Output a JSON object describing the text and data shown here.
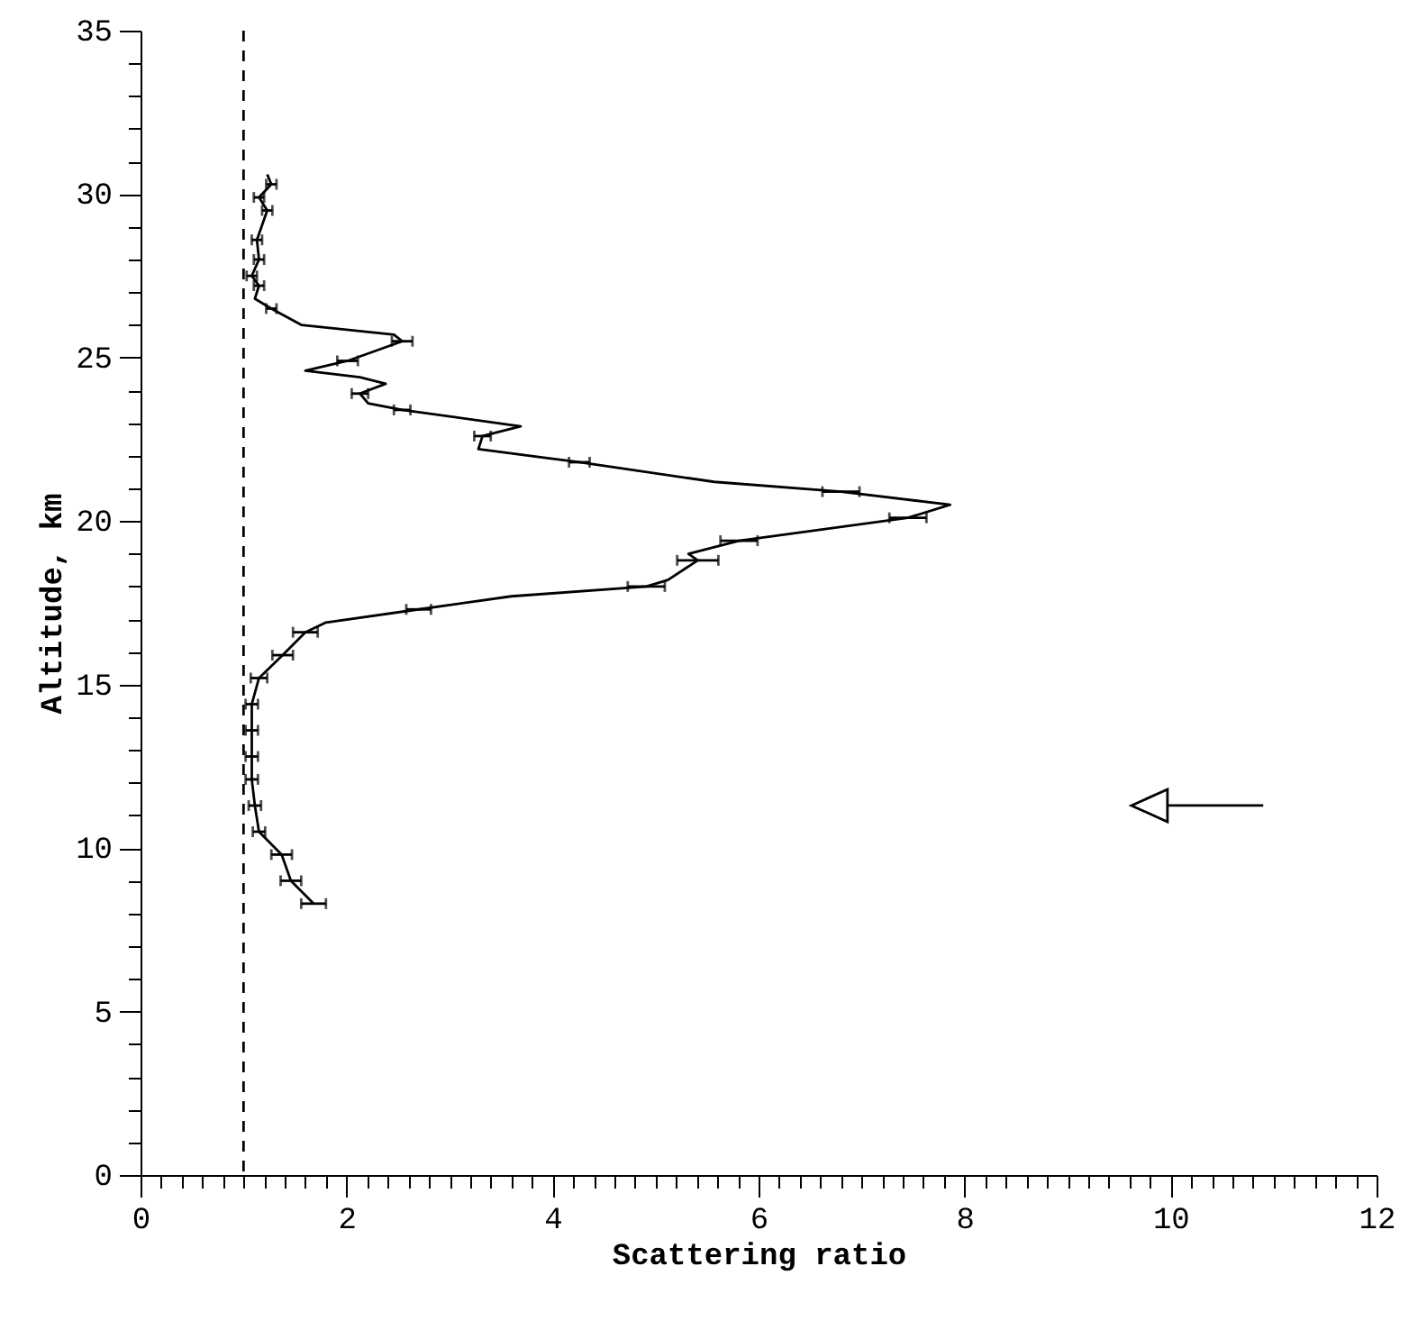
{
  "chart_data": {
    "type": "line",
    "xlabel": "Scattering ratio",
    "ylabel": "Altitude, km",
    "xlim": [
      0,
      12
    ],
    "ylim": [
      0,
      35
    ],
    "xticks": [
      0,
      {
        "value": 0.2,
        "label": null
      },
      {
        "value": 0.4,
        "label": null
      },
      {
        "value": 0.6,
        "label": null
      },
      {
        "value": 0.8,
        "label": null
      },
      {
        "value": 1,
        "label": null
      },
      {
        "value": 1.2,
        "label": null
      },
      {
        "value": 1.4,
        "label": null
      },
      {
        "value": 1.6,
        "label": null
      },
      {
        "value": 1.8,
        "label": null
      },
      2,
      {
        "value": 2.2,
        "label": null
      },
      {
        "value": 2.4,
        "label": null
      },
      {
        "value": 2.6,
        "label": null
      },
      {
        "value": 2.8,
        "label": null
      },
      {
        "value": 3,
        "label": null
      },
      {
        "value": 3.2,
        "label": null
      },
      {
        "value": 3.4,
        "label": null
      },
      {
        "value": 3.6,
        "label": null
      },
      {
        "value": 3.8,
        "label": null
      },
      4,
      {
        "value": 4.2,
        "label": null
      },
      {
        "value": 4.4,
        "label": null
      },
      {
        "value": 4.6,
        "label": null
      },
      {
        "value": 4.8,
        "label": null
      },
      {
        "value": 5,
        "label": null
      },
      {
        "value": 5.2,
        "label": null
      },
      {
        "value": 5.4,
        "label": null
      },
      {
        "value": 5.6,
        "label": null
      },
      {
        "value": 5.8,
        "label": null
      },
      6,
      {
        "value": 6.2,
        "label": null
      },
      {
        "value": 6.4,
        "label": null
      },
      {
        "value": 6.6,
        "label": null
      },
      {
        "value": 6.8,
        "label": null
      },
      {
        "value": 7,
        "label": null
      },
      {
        "value": 7.2,
        "label": null
      },
      {
        "value": 7.4,
        "label": null
      },
      {
        "value": 7.6,
        "label": null
      },
      {
        "value": 7.8,
        "label": null
      },
      8,
      {
        "value": 8.2,
        "label": null
      },
      {
        "value": 8.4,
        "label": null
      },
      {
        "value": 8.6,
        "label": null
      },
      {
        "value": 8.8,
        "label": null
      },
      {
        "value": 9,
        "label": null
      },
      {
        "value": 9.2,
        "label": null
      },
      {
        "value": 9.4,
        "label": null
      },
      {
        "value": 9.6,
        "label": null
      },
      {
        "value": 9.8,
        "label": null
      },
      10,
      {
        "value": 10.2,
        "label": null
      },
      {
        "value": 10.4,
        "label": null
      },
      {
        "value": 10.6,
        "label": null
      },
      {
        "value": 10.8,
        "label": null
      },
      {
        "value": 11,
        "label": null
      },
      {
        "value": 11.2,
        "label": null
      },
      {
        "value": 11.4,
        "label": null
      },
      {
        "value": 11.6,
        "label": null
      },
      {
        "value": 11.8,
        "label": null
      },
      12
    ],
    "yticks": [
      0,
      {
        "value": 1,
        "label": null
      },
      {
        "value": 2,
        "label": null
      },
      {
        "value": 3,
        "label": null
      },
      {
        "value": 4,
        "label": null
      },
      5,
      {
        "value": 6,
        "label": null
      },
      {
        "value": 7,
        "label": null
      },
      {
        "value": 8,
        "label": null
      },
      {
        "value": 9,
        "label": null
      },
      10,
      {
        "value": 11,
        "label": null
      },
      {
        "value": 12,
        "label": null
      },
      {
        "value": 13,
        "label": null
      },
      {
        "value": 14,
        "label": null
      },
      15,
      {
        "value": 16,
        "label": null
      },
      {
        "value": 17,
        "label": null
      },
      {
        "value": 18,
        "label": null
      },
      {
        "value": 19,
        "label": null
      },
      20,
      {
        "value": 21,
        "label": null
      },
      {
        "value": 22,
        "label": null
      },
      {
        "value": 23,
        "label": null
      },
      {
        "value": 24,
        "label": null
      },
      25,
      {
        "value": 26,
        "label": null
      },
      {
        "value": 27,
        "label": null
      },
      {
        "value": 28,
        "label": null
      },
      {
        "value": 29,
        "label": null
      },
      30,
      {
        "value": 31,
        "label": null
      },
      {
        "value": 32,
        "label": null
      },
      {
        "value": 33,
        "label": null
      },
      {
        "value": 34,
        "label": null
      },
      35
    ],
    "grid": false,
    "marker": "none",
    "line_style": "solid",
    "series": [
      {
        "color": "#000000",
        "x": [
          1.68,
          1.46,
          1.37,
          1.15,
          1.11,
          1.08,
          1.08,
          1.08,
          1.08,
          1.15,
          1.38,
          1.6,
          1.8,
          2.7,
          3.6,
          4.91,
          5.12,
          5.41,
          5.32,
          5.81,
          7.45,
          7.86,
          6.8,
          5.57,
          4.26,
          3.28,
          3.32,
          3.69,
          2.54,
          2.21,
          2.13,
          2.38,
          2.13,
          1.6,
          2.01,
          2.54,
          2.46,
          1.56,
          1.27,
          1.11,
          1.15,
          1.08,
          1.15,
          1.13,
          1.23,
          1.15,
          1.27,
          1.23
        ],
        "values": [
          8.3,
          9.0,
          9.8,
          10.5,
          11.3,
          12.1,
          12.8,
          13.6,
          14.4,
          15.2,
          15.9,
          16.6,
          16.9,
          17.3,
          17.7,
          18.0,
          18.2,
          18.8,
          19.0,
          19.4,
          20.1,
          20.5,
          20.9,
          21.2,
          21.8,
          22.2,
          22.6,
          22.9,
          23.4,
          23.6,
          23.9,
          24.2,
          24.4,
          24.6,
          24.9,
          25.5,
          25.7,
          26.0,
          26.5,
          26.8,
          27.2,
          27.5,
          28.0,
          28.6,
          29.5,
          29.9,
          30.3,
          30.6
        ],
        "xerrors": [
          0.12,
          0.1,
          0.1,
          0.06,
          0.06,
          0.06,
          0.06,
          0.06,
          0.06,
          0.08,
          0.1,
          0.12,
          null,
          0.12,
          null,
          0.18,
          null,
          0.2,
          null,
          0.18,
          0.18,
          null,
          0.18,
          null,
          0.1,
          null,
          0.08,
          null,
          0.08,
          null,
          0.08,
          null,
          null,
          null,
          0.1,
          0.1,
          null,
          null,
          0.05,
          null,
          0.05,
          0.05,
          0.05,
          0.05,
          0.05,
          0.05,
          0.05,
          null
        ]
      }
    ],
    "ref_lines": [
      {
        "axis": "x",
        "value": 1,
        "line_style": "dashed",
        "color": "#000000"
      }
    ]
  }
}
